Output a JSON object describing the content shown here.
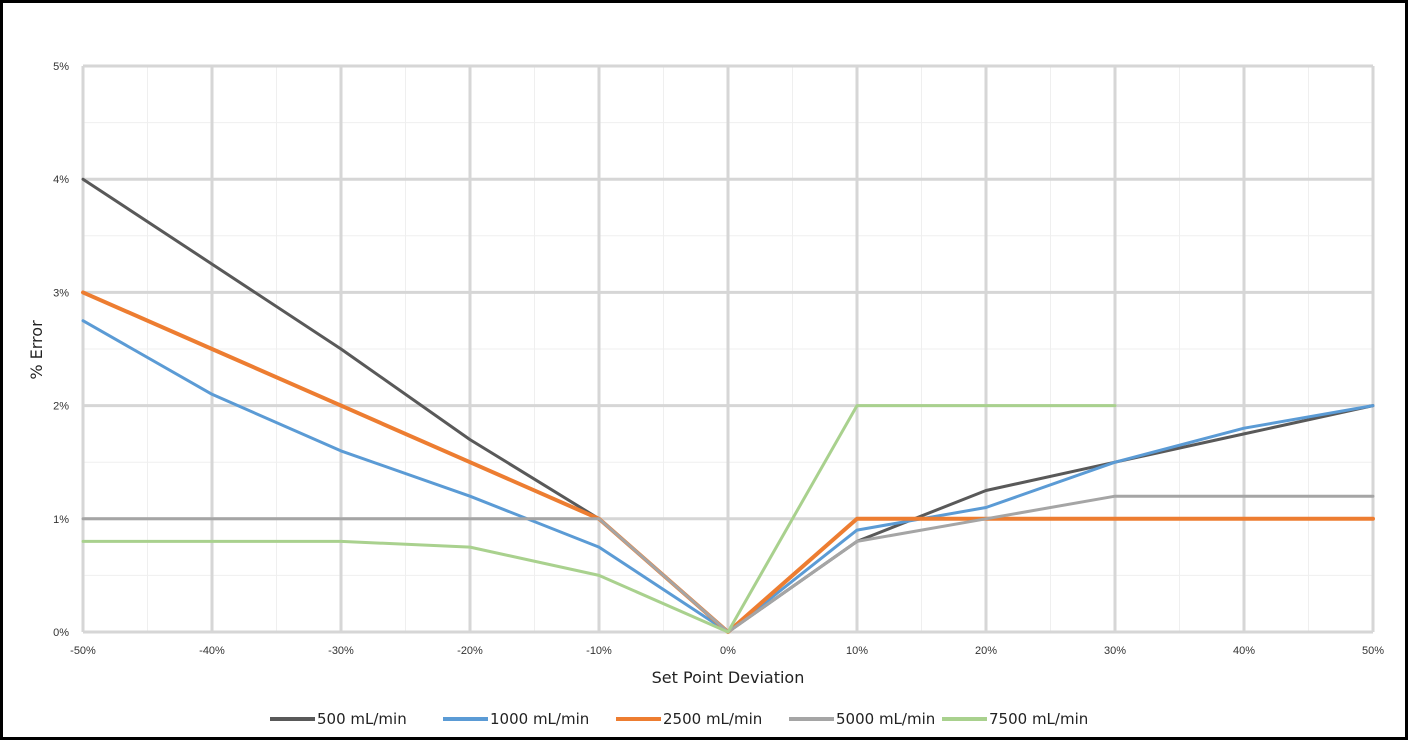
{
  "chart_data": {
    "type": "line",
    "xlabel": "Set Point Deviation",
    "ylabel": "% Error",
    "x": [
      -50,
      -40,
      -30,
      -20,
      -10,
      0,
      10,
      20,
      30,
      40,
      50
    ],
    "x_tick_labels": [
      "-50%",
      "-40%",
      "-30%",
      "-20%",
      "-10%",
      "0%",
      "10%",
      "20%",
      "30%",
      "40%",
      "50%"
    ],
    "y_tick_labels": [
      "0%",
      "1%",
      "2%",
      "3%",
      "4%",
      "5%"
    ],
    "xlim": [
      -50,
      50
    ],
    "ylim": [
      0,
      5
    ],
    "grid": "major and minor",
    "legend_position": "bottom",
    "series": [
      {
        "name": "500 mL/min",
        "color": "#595959",
        "width": 3,
        "values": [
          4.0,
          3.25,
          2.5,
          1.7,
          1.0,
          0,
          0.8,
          1.25,
          1.5,
          1.75,
          2.0
        ]
      },
      {
        "name": "1000 mL/min",
        "color": "#5B9BD5",
        "width": 3,
        "values": [
          2.75,
          2.1,
          1.6,
          1.2,
          0.75,
          0,
          0.9,
          1.1,
          1.5,
          1.8,
          2.0
        ]
      },
      {
        "name": "2500 mL/min",
        "color": "#ED7D31",
        "width": 4,
        "values": [
          3.0,
          2.5,
          2.0,
          1.5,
          1.0,
          0,
          1.0,
          1.0,
          1.0,
          1.0,
          1.0
        ]
      },
      {
        "name": "5000 mL/min",
        "color": "#A5A5A5",
        "width": 3,
        "values": [
          1.0,
          1.0,
          1.0,
          1.0,
          1.0,
          0,
          0.8,
          1.0,
          1.2,
          1.2,
          1.2
        ]
      },
      {
        "name": "7500 mL/min",
        "color": "#A9D18E",
        "width": 3,
        "values": [
          0.8,
          0.8,
          0.8,
          0.75,
          0.5,
          0,
          2.0,
          2.0,
          2.0,
          null,
          null
        ]
      }
    ]
  }
}
